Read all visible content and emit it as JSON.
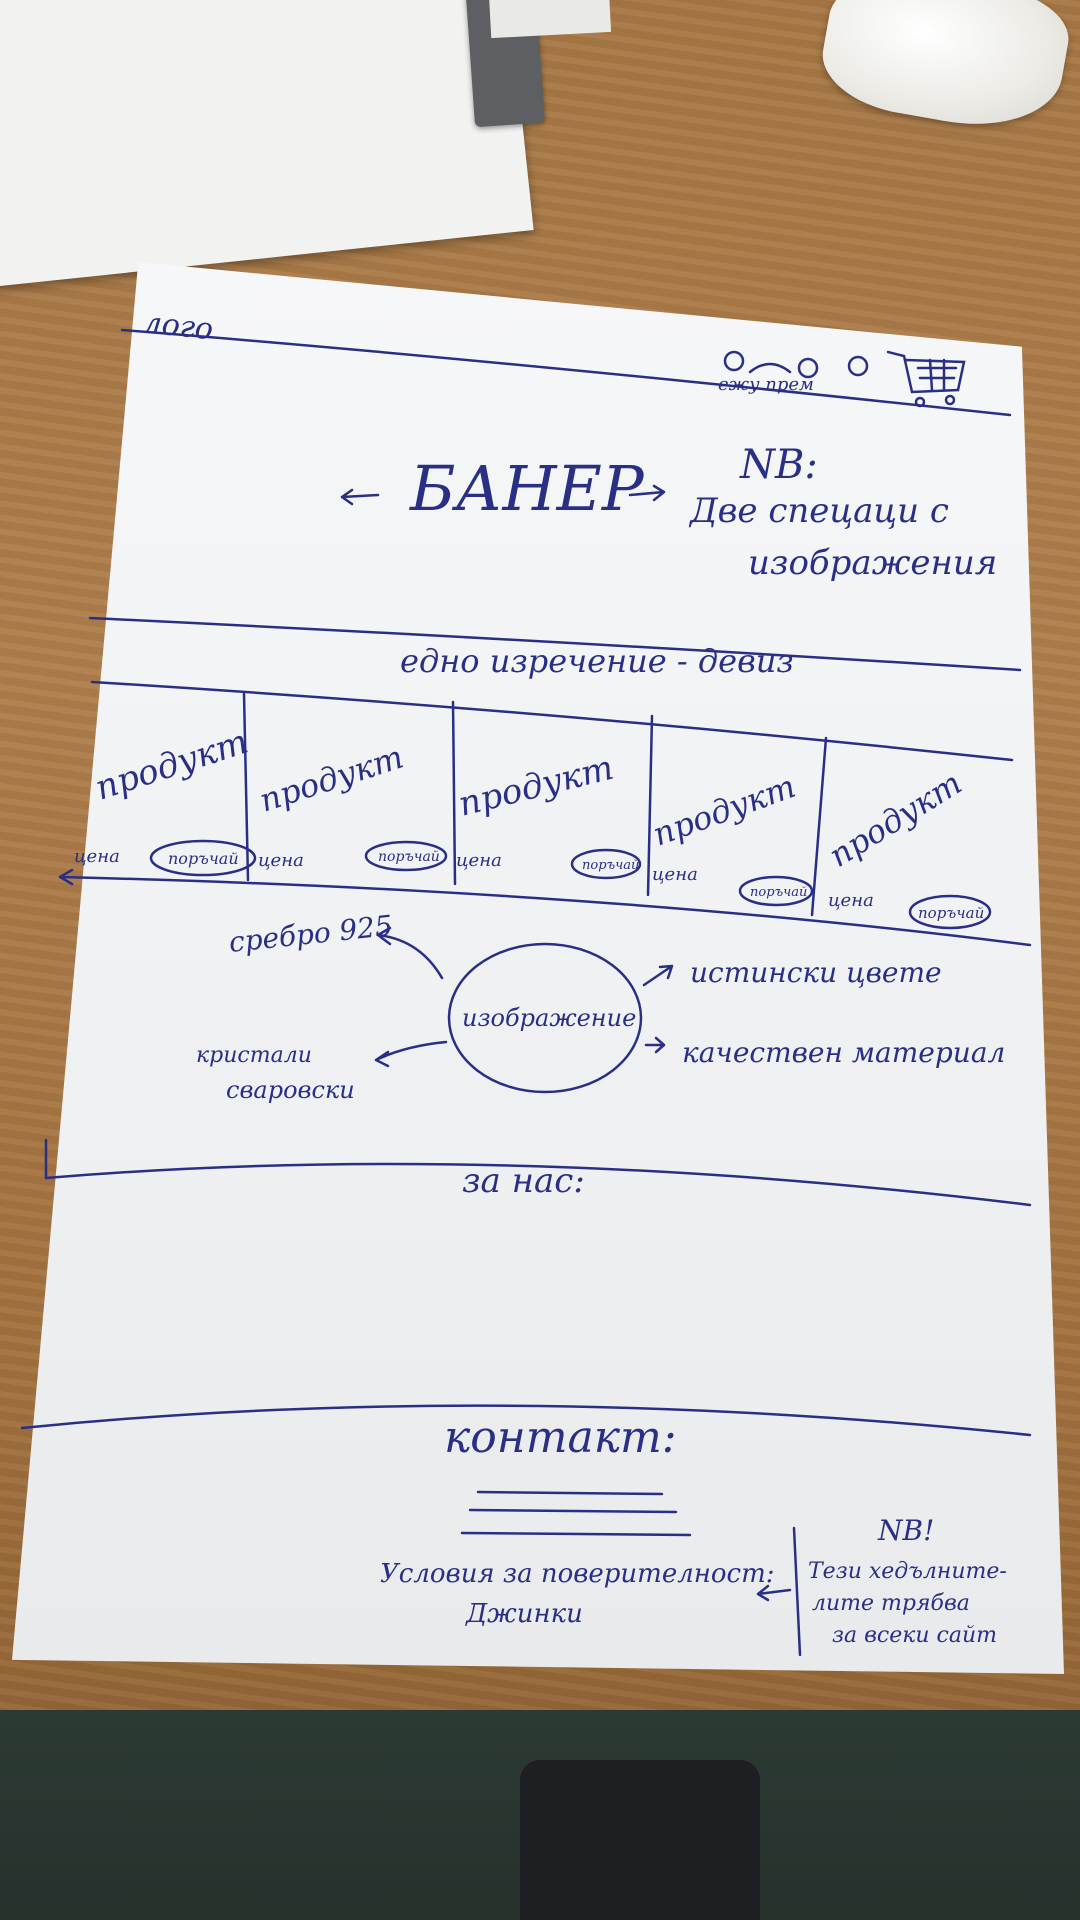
{
  "sketch": {
    "logo": "лого",
    "header_icons": {
      "label": "ежу прем",
      "cart": "cart-icon"
    },
    "banner": {
      "label": "БАНЕР",
      "note_mark": "NB:",
      "note_line1": "Две спецаци с",
      "note_line2": "изображения"
    },
    "section_title": "едно изречение - девиз",
    "products": [
      {
        "name": "продукт",
        "price": "цена",
        "button": "поръчай"
      },
      {
        "name": "продукт",
        "price": "цена",
        "button": "поръчай"
      },
      {
        "name": "продукт",
        "price": "цена",
        "button": "поръчай"
      },
      {
        "name": "продукт",
        "price": "цена",
        "button": "поръчай"
      },
      {
        "name": "продукт",
        "price": "цена",
        "button": "поръчай"
      }
    ],
    "features": {
      "center": "изображение",
      "top_left": "сребро 925",
      "bottom_left_line1": "кристали",
      "bottom_left_line2": "сваровски",
      "top_right": "истински цвете",
      "bottom_right": "качествен материал"
    },
    "about_title": "за нас:",
    "contact_title": "контакт:",
    "terms": {
      "line1": "Условия за поверителност:",
      "line2": "Джинки"
    },
    "side_note": {
      "mark": "NB!",
      "line1": "Тези хедълните-",
      "line2": "лите трябва",
      "line3": "за всеки сайт"
    }
  },
  "colors": {
    "ink": "#2a2f86",
    "paper": "#f3f4f5",
    "desk": "#a87845"
  }
}
